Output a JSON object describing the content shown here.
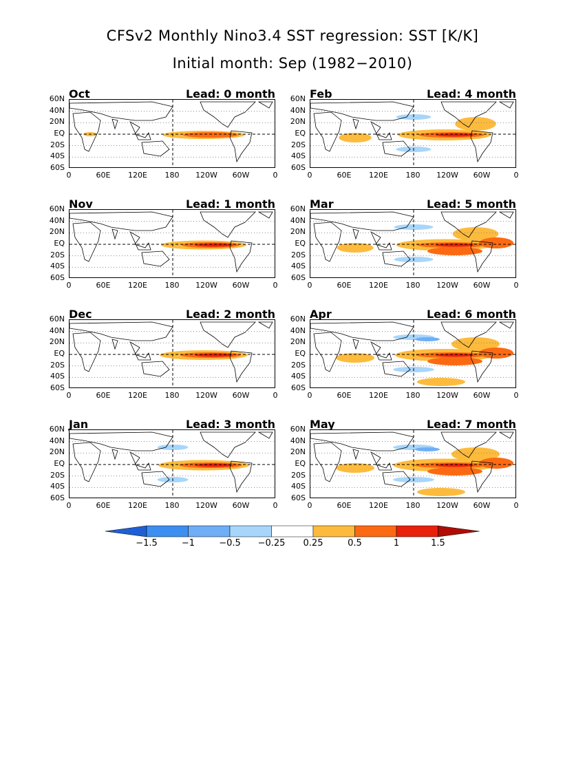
{
  "title": {
    "line1": "CFSv2 Monthly Nino3.4 SST regression: SST [K/K]",
    "line2": "Initial month: Sep (1982−2010)"
  },
  "axes": {
    "y_ticks": [
      "60N",
      "40N",
      "20N",
      "EQ",
      "20S",
      "40S",
      "60S"
    ],
    "x_ticks": [
      "0",
      "60E",
      "120E",
      "180",
      "120W",
      "60W",
      "0"
    ]
  },
  "panels": [
    {
      "month": "Oct",
      "lead": "Lead: 0 month",
      "lead_months": 0
    },
    {
      "month": "Feb",
      "lead": "Lead: 4 month",
      "lead_months": 4
    },
    {
      "month": "Nov",
      "lead": "Lead: 1 month",
      "lead_months": 1
    },
    {
      "month": "Mar",
      "lead": "Lead: 5 month",
      "lead_months": 5
    },
    {
      "month": "Dec",
      "lead": "Lead: 2 month",
      "lead_months": 2
    },
    {
      "month": "Apr",
      "lead": "Lead: 6 month",
      "lead_months": 6
    },
    {
      "month": "Jan",
      "lead": "Lead: 3 month",
      "lead_months": 3
    },
    {
      "month": "May",
      "lead": "Lead: 7 month",
      "lead_months": 7
    }
  ],
  "colorbar": {
    "labels": [
      "−1.5",
      "−1",
      "−0.5",
      "−0.25",
      "0.25",
      "0.5",
      "1",
      "1.5"
    ],
    "colors": [
      "#1f5fd6",
      "#3c8ef0",
      "#6faef7",
      "#a8d6fb",
      "#ffffff",
      "#fdbb3d",
      "#fb6a12",
      "#e8200c",
      "#b00c06"
    ]
  }
}
